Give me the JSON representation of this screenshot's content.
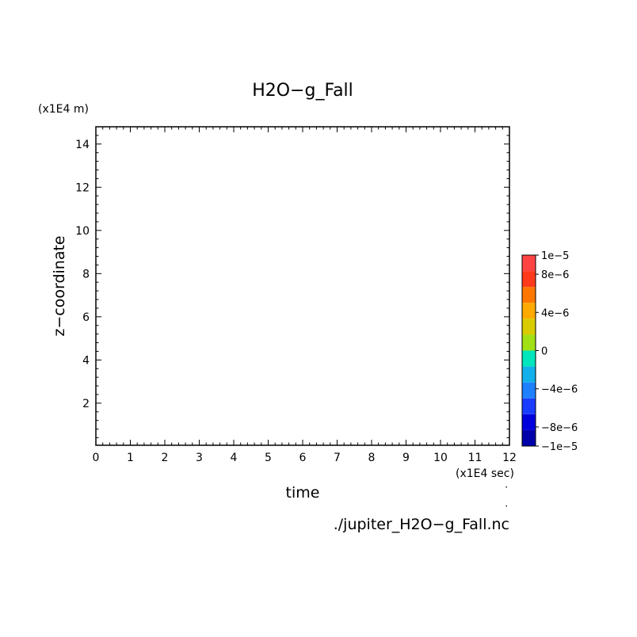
{
  "chart_data": {
    "type": "heatmap",
    "title": "H2O−g_Fall",
    "xlabel": "time",
    "ylabel": "z−coordinate",
    "x_unit": "(x1E4 sec)",
    "y_unit": "(x1E4 m)",
    "xlim": [
      0,
      12
    ],
    "ylim": [
      0.05,
      14.8
    ],
    "xticks": [
      "0",
      "1",
      "2",
      "3",
      "4",
      "5",
      "6",
      "7",
      "8",
      "9",
      "10",
      "11",
      "12"
    ],
    "yticks": [
      "2",
      "4",
      "6",
      "8",
      "10",
      "12",
      "14"
    ],
    "values": [],
    "colorbar": {
      "range": [
        -1e-05,
        1e-05
      ],
      "levels": 12,
      "colors": [
        "#0000aa",
        "#0000dd",
        "#1a3cff",
        "#1e7fff",
        "#12b0ea",
        "#00e5bb",
        "#a0e015",
        "#d8cc00",
        "#ffaa00",
        "#ff7700",
        "#ff3a1a",
        "#ff4444"
      ],
      "tick_labels": [
        "1e−5",
        "8e−6",
        "4e−6",
        "0",
        "−4e−6",
        "−8e−6",
        "−1e−5"
      ]
    },
    "source_file": "./jupiter_H2O−g_Fall.nc"
  }
}
